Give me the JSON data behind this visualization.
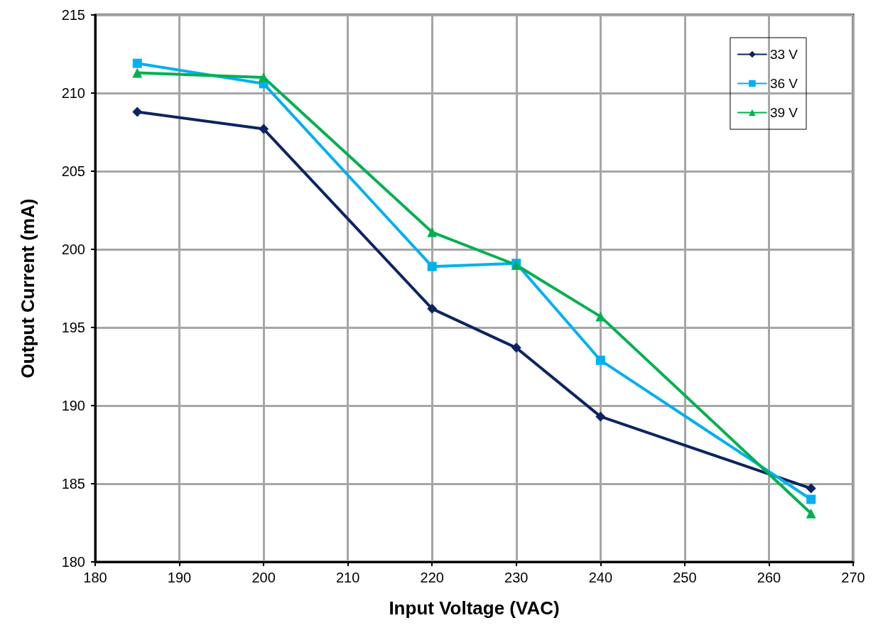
{
  "chart_data": {
    "type": "line",
    "xlabel": "Input Voltage (VAC)",
    "ylabel": "Output Current (mA)",
    "x": [
      185,
      200,
      220,
      230,
      240,
      265
    ],
    "xlim": [
      180,
      270
    ],
    "xticks": [
      180,
      190,
      200,
      210,
      220,
      230,
      240,
      250,
      260,
      270
    ],
    "ylim": [
      180,
      215
    ],
    "yticks": [
      180,
      185,
      190,
      195,
      200,
      205,
      210,
      215
    ],
    "grid": true,
    "legend": "top right",
    "line_style": "solid",
    "series": [
      {
        "name": "33 V",
        "color": "#0c2461",
        "marker": "diamond",
        "values": [
          208.8,
          207.7,
          196.2,
          193.7,
          189.3,
          184.7
        ]
      },
      {
        "name": "36 V",
        "color": "#00b0f0",
        "marker": "square",
        "values": [
          211.9,
          210.6,
          198.9,
          199.1,
          192.9,
          184.0
        ]
      },
      {
        "name": "39 V",
        "color": "#00b050",
        "marker": "triangle",
        "values": [
          211.3,
          211.0,
          201.1,
          199.0,
          195.7,
          183.1
        ]
      }
    ]
  }
}
